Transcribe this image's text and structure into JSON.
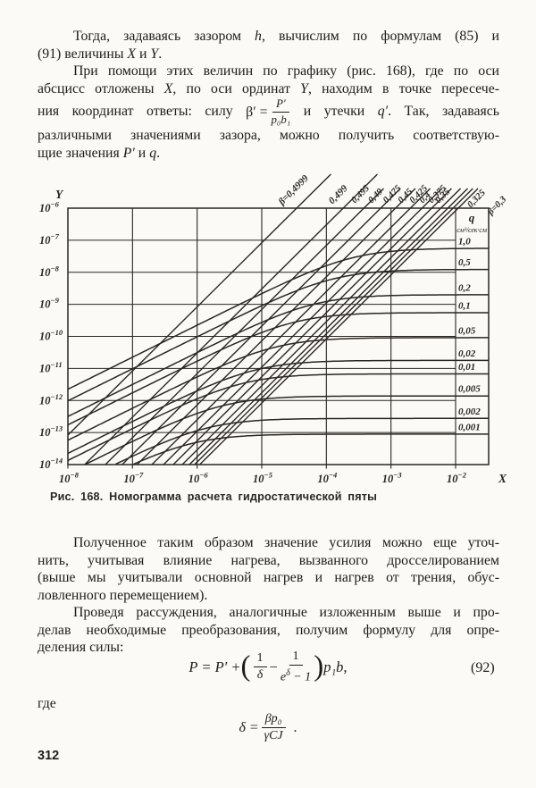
{
  "page": {
    "number": "312"
  },
  "paragraphs": {
    "p1": [
      {
        "ind": true,
        "j": true,
        "seg": [
          {
            "t": "Тогда, задаваясь зазором "
          },
          {
            "t": "h",
            "i": true
          },
          {
            "t": ", вычислим по формулам (85) и"
          }
        ]
      },
      {
        "seg": [
          {
            "t": "(91) величины "
          },
          {
            "t": "X",
            "i": true
          },
          {
            "t": " и "
          },
          {
            "t": "Y",
            "i": true
          },
          {
            "t": "."
          }
        ]
      }
    ],
    "p2": [
      {
        "ind": true,
        "j": true,
        "seg": [
          {
            "t": "При помощи этих величин по графику (рис. 168), где по оси"
          }
        ]
      },
      {
        "j": true,
        "seg": [
          {
            "t": "абсцисс отложены "
          },
          {
            "t": "X",
            "i": true
          },
          {
            "t": ", по оси ординат "
          },
          {
            "t": "Y",
            "i": true
          },
          {
            "t": ", находим в точке пересече-"
          }
        ]
      },
      {
        "j": true,
        "seg": [
          {
            "t": "ния координат ответы: силу "
          },
          {
            "frac": {
              "pre": "β′ = ",
              "num": "P′",
              "den": "p₀b₁"
            }
          },
          {
            "t": " и утечки "
          },
          {
            "t": "q′",
            "i": true
          },
          {
            "t": ". Так, задаваясь"
          }
        ]
      },
      {
        "j": true,
        "seg": [
          {
            "t": "различными значениями зазора, можно получить соответствую-"
          }
        ]
      },
      {
        "seg": [
          {
            "t": "щие значения "
          },
          {
            "t": "P′",
            "i": true
          },
          {
            "t": " и "
          },
          {
            "t": "q",
            "i": true
          },
          {
            "t": "."
          }
        ]
      }
    ],
    "p3": [
      {
        "ind": true,
        "j": true,
        "seg": [
          {
            "t": "Полученное таким образом значение усилия можно еще уточ-"
          }
        ]
      },
      {
        "j": true,
        "seg": [
          {
            "t": "нить, учитывая влияние нагрева, вызванного дросселированием"
          }
        ]
      },
      {
        "j": true,
        "seg": [
          {
            "t": "(выше мы учитывали основной нагрев и нагрев от трения, обус-"
          }
        ]
      },
      {
        "seg": [
          {
            "t": "ловленного перемещением)."
          }
        ]
      }
    ],
    "p4": [
      {
        "ind": true,
        "j": true,
        "seg": [
          {
            "t": "Проведя рассуждения, аналогичные изложенным выше и про-"
          }
        ]
      },
      {
        "j": true,
        "seg": [
          {
            "t": "делав необходимые преобразования, получим формулу для опре-"
          }
        ]
      },
      {
        "seg": [
          {
            "t": "деления силы:"
          }
        ]
      }
    ]
  },
  "figure_caption": "Рис. 168. Номограмма расчета гидростатической пяты",
  "chart_data": {
    "type": "line",
    "title": "Номограмма расчета гидростатической пяты",
    "grid": true,
    "x_axis": {
      "label": "X",
      "scale": "log",
      "tick_exponents": [
        -8,
        -7,
        -6,
        -5,
        -4,
        -3,
        -2
      ]
    },
    "y_axis": {
      "label": "Y",
      "scale": "log",
      "tick_exponents": [
        -6,
        -7,
        -8,
        -9,
        -10,
        -11,
        -12,
        -13,
        -14
      ]
    },
    "beta_family": {
      "slope_decades_per_decade": 2,
      "lines": [
        {
          "label": "β=0,4999",
          "value": 0.4999,
          "x_log_at_y1e6": -4.46
        },
        {
          "label": "0,499",
          "value": 0.499,
          "x_log_at_y1e6": -3.74
        },
        {
          "label": "0,495",
          "value": 0.495,
          "x_log_at_y1e6": -3.42
        },
        {
          "label": "0,49",
          "value": 0.49,
          "x_log_at_y1e6": -3.16
        },
        {
          "label": "0,475",
          "value": 0.475,
          "x_log_at_y1e6": -2.93
        },
        {
          "label": "0,45",
          "value": 0.45,
          "x_log_at_y1e6": -2.7
        },
        {
          "label": "0,425",
          "value": 0.425,
          "x_log_at_y1e6": -2.52
        },
        {
          "label": "0,4",
          "value": 0.4,
          "x_log_at_y1e6": -2.37
        },
        {
          "label": "0,375",
          "value": 0.375,
          "x_log_at_y1e6": -2.23
        },
        {
          "label": "0,35",
          "value": 0.35,
          "x_log_at_y1e6": -2.12
        },
        {
          "label": "0,325",
          "value": 0.325,
          "x_log_at_y1e6": -2.04
        },
        {
          "label": "β=0,3",
          "value": 0.3,
          "x_log_at_y1e6": -1.96
        }
      ]
    },
    "q_family": {
      "header": "q",
      "unit": "см³/сек·см",
      "curves": [
        {
          "label": "1,0",
          "value": 1.0,
          "y_asymptote_log": -7.25,
          "knee_x_log": -3.6
        },
        {
          "label": "0,5",
          "value": 0.5,
          "y_asymptote_log": -7.91,
          "knee_x_log": -3.9
        },
        {
          "label": "0,2",
          "value": 0.2,
          "y_asymptote_log": -8.7,
          "knee_x_log": -4.2
        },
        {
          "label": "0,1",
          "value": 0.1,
          "y_asymptote_log": -9.26,
          "knee_x_log": -4.5
        },
        {
          "label": "0,05",
          "value": 0.05,
          "y_asymptote_log": -10.04,
          "knee_x_log": -4.8
        },
        {
          "label": "0,02",
          "value": 0.02,
          "y_asymptote_log": -10.75,
          "knee_x_log": -5.1
        },
        {
          "label": "0,01",
          "value": 0.01,
          "y_asymptote_log": -11.17,
          "knee_x_log": -5.3
        },
        {
          "label": "0,005",
          "value": 0.005,
          "y_asymptote_log": -11.86,
          "knee_x_log": -5.6
        },
        {
          "label": "0,002",
          "value": 0.002,
          "y_asymptote_log": -12.56,
          "knee_x_log": -5.85
        },
        {
          "label": "0,001",
          "value": 0.001,
          "y_asymptote_log": -13.05,
          "knee_x_log": -6.1
        }
      ]
    }
  },
  "formula92": {
    "lhs": "P = P′ + ",
    "open": "(",
    "f1num": "1",
    "f1den": "δ",
    "minus": "−",
    "f2num": "1",
    "f2den_base": "e",
    "f2den_sup": "δ",
    "f2den_rest": " − 1",
    "close": ")",
    "tail": " p₁b,",
    "number": "(92)"
  },
  "where_label": "где",
  "formula_delta": {
    "lhs": "δ = ",
    "num": "βp₀",
    "den": "γCJ",
    "tail": "."
  },
  "ink_color": "#2b2622"
}
